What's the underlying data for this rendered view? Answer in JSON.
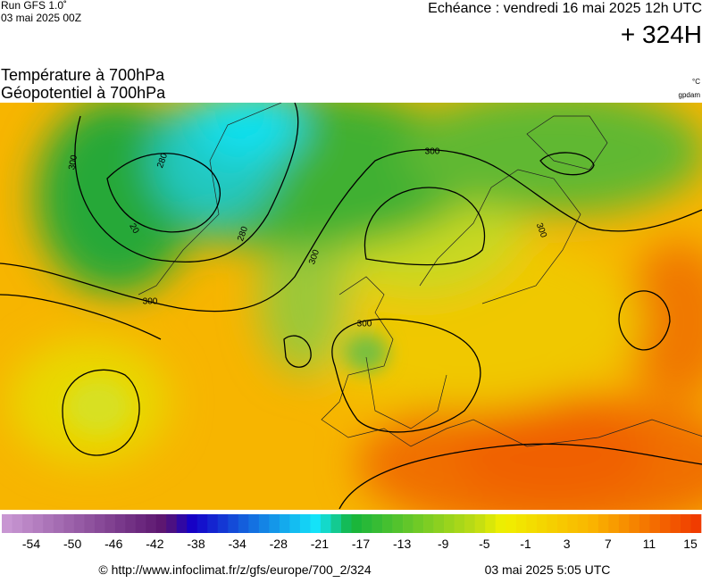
{
  "header": {
    "run": "Run GFS 1.0˚",
    "run_date": "03 mai 2025 00Z",
    "forecast": "Echéance : vendredi 16 mai 2025 12h UTC",
    "lead": "+ 324H"
  },
  "titles": {
    "temperature": "Température à 700hPa",
    "geopotential": "Géopotentiel à 700hPa"
  },
  "units": {
    "temperature": "°C",
    "geopotential": "gpdam"
  },
  "contour_labels": [
    "300",
    "280",
    "20",
    "280",
    "300",
    "300",
    "300",
    "300",
    "300"
  ],
  "colorbar": {
    "labels": [
      -54,
      -50,
      -46,
      -42,
      -38,
      -34,
      -28,
      -21,
      -17,
      -13,
      -9,
      -5,
      -1,
      3,
      7,
      11,
      15
    ]
  },
  "footer": {
    "source": "© http://www.infoclimat.fr/z/gfs/europe/700_2/324",
    "generated": "03 mai 2025  5:05 UTC"
  }
}
